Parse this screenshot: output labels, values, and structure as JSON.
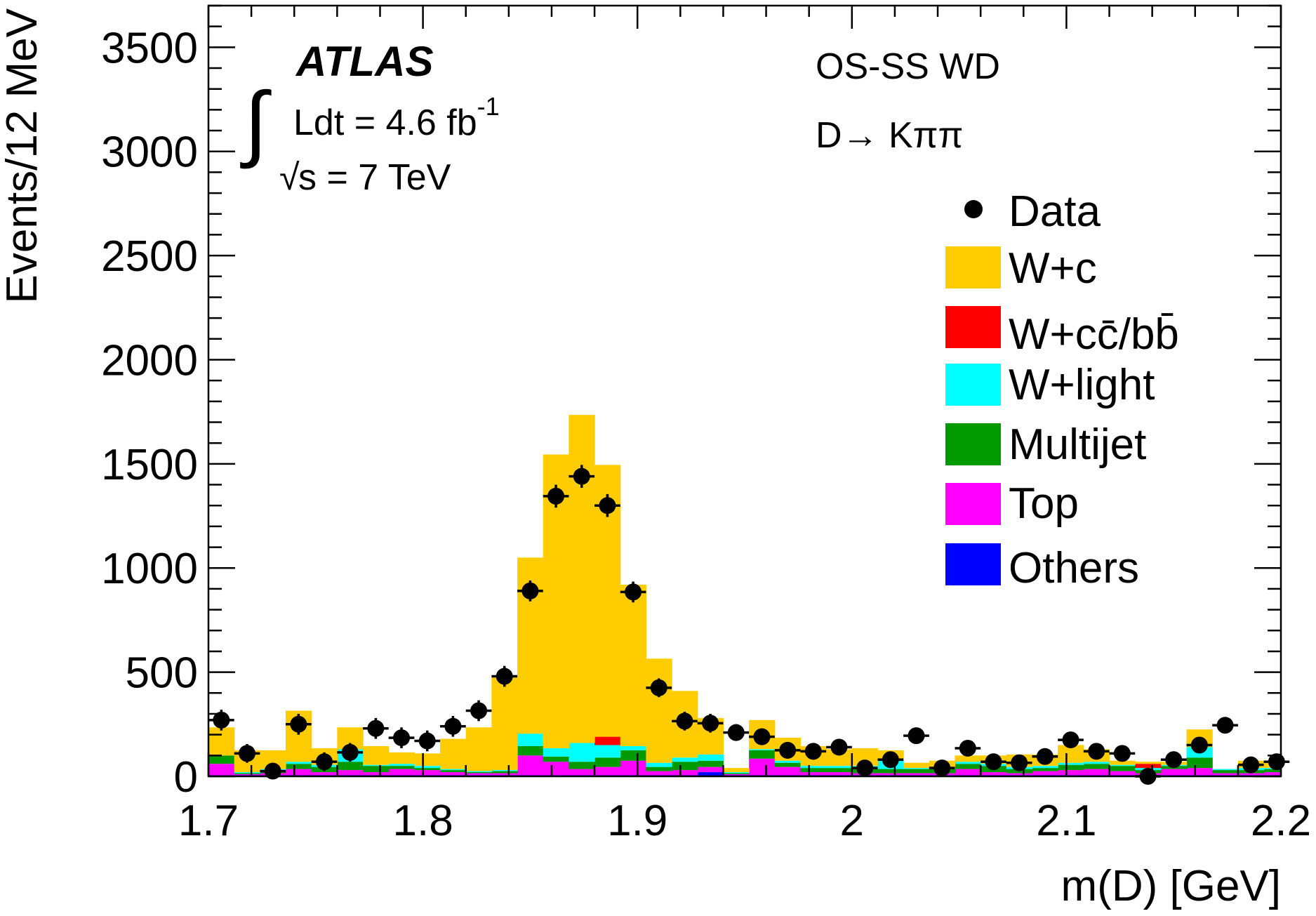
{
  "chart_data": {
    "type": "bar",
    "subtype": "stacked-histogram-with-data-points",
    "xlabel": "m(D) [GeV]",
    "ylabel": "Events/12 MeV",
    "xlim": [
      1.7,
      2.2
    ],
    "ylim": [
      0,
      3700
    ],
    "xticks": [
      1.7,
      1.8,
      1.9,
      2.0,
      2.1,
      2.2
    ],
    "xtick_labels": [
      "1.7",
      "1.8",
      "1.9",
      "2",
      "2.1",
      "2.2"
    ],
    "yticks": [
      0,
      500,
      1000,
      1500,
      2000,
      2500,
      3000,
      3500
    ],
    "ytick_labels": [
      "0",
      "500",
      "1000",
      "1500",
      "2000",
      "2500",
      "3000",
      "3500"
    ],
    "bin_edges": [
      1.7,
      1.712,
      1.724,
      1.736,
      1.748,
      1.76,
      1.772,
      1.784,
      1.796,
      1.808,
      1.82,
      1.832,
      1.844,
      1.856,
      1.868,
      1.88,
      1.892,
      1.904,
      1.916,
      1.928,
      1.94,
      1.952,
      1.964,
      1.976,
      1.988,
      2.0,
      2.012,
      2.024,
      2.036,
      2.048,
      2.06,
      2.072,
      2.084,
      2.096,
      2.108,
      2.12,
      2.132,
      2.144,
      2.156,
      2.168,
      2.18,
      2.192,
      2.2
    ],
    "series": [
      {
        "name": "Others",
        "color": "#0000ff",
        "values": [
          5,
          5,
          5,
          5,
          5,
          5,
          5,
          5,
          5,
          5,
          5,
          5,
          5,
          5,
          5,
          5,
          5,
          5,
          5,
          20,
          5,
          5,
          5,
          5,
          5,
          5,
          5,
          5,
          5,
          5,
          5,
          5,
          5,
          5,
          5,
          5,
          5,
          5,
          5,
          5,
          5,
          5
        ]
      },
      {
        "name": "Top",
        "color": "#ff00ff",
        "values": [
          55,
          5,
          10,
          30,
          15,
          25,
          15,
          30,
          25,
          15,
          10,
          10,
          95,
          65,
          30,
          40,
          70,
          20,
          25,
          25,
          5,
          80,
          40,
          15,
          15,
          10,
          10,
          10,
          10,
          30,
          15,
          10,
          20,
          25,
          30,
          20,
          10,
          30,
          35,
          10,
          10,
          15
        ]
      },
      {
        "name": "Multijet",
        "color": "#009900",
        "values": [
          40,
          5,
          15,
          25,
          25,
          40,
          30,
          15,
          10,
          10,
          5,
          10,
          45,
          25,
          35,
          45,
          50,
          20,
          40,
          30,
          5,
          40,
          20,
          20,
          20,
          25,
          20,
          20,
          20,
          25,
          30,
          20,
          15,
          25,
          25,
          25,
          15,
          15,
          50,
          15,
          15,
          15
        ]
      },
      {
        "name": "W+light",
        "color": "#00ffff",
        "values": [
          0,
          5,
          5,
          10,
          10,
          60,
          5,
          10,
          10,
          5,
          5,
          5,
          60,
          40,
          90,
          60,
          20,
          20,
          20,
          30,
          5,
          5,
          10,
          10,
          10,
          10,
          45,
          5,
          5,
          10,
          10,
          10,
          10,
          10,
          10,
          5,
          10,
          5,
          50,
          5,
          10,
          5
        ]
      },
      {
        "name": "W+cc̄/bb̄",
        "color": "#ff0000",
        "values": [
          0,
          0,
          0,
          0,
          0,
          0,
          0,
          0,
          0,
          0,
          0,
          0,
          0,
          0,
          0,
          40,
          0,
          0,
          0,
          0,
          0,
          0,
          0,
          0,
          0,
          0,
          0,
          0,
          0,
          0,
          0,
          0,
          0,
          0,
          0,
          0,
          20,
          0,
          0,
          0,
          0,
          0
        ]
      },
      {
        "name": "W+c",
        "color": "#ffcc00",
        "values": [
          135,
          105,
          90,
          245,
          80,
          105,
          90,
          55,
          60,
          145,
          210,
          455,
          845,
          1410,
          1575,
          1305,
          775,
          500,
          320,
          175,
          20,
          140,
          110,
          95,
          80,
          85,
          45,
          25,
          35,
          30,
          40,
          60,
          55,
          85,
          60,
          20,
          10,
          15,
          85,
          0,
          35,
          25
        ]
      }
    ],
    "data_points": {
      "name": "Data",
      "x": [
        1.706,
        1.718,
        1.73,
        1.742,
        1.754,
        1.766,
        1.778,
        1.79,
        1.802,
        1.814,
        1.826,
        1.838,
        1.85,
        1.862,
        1.874,
        1.886,
        1.898,
        1.91,
        1.922,
        1.934,
        1.946,
        1.958,
        1.97,
        1.982,
        1.994,
        2.006,
        2.018,
        2.03,
        2.042,
        2.054,
        2.066,
        2.078,
        2.09,
        2.102,
        2.114,
        2.126,
        2.138,
        2.15,
        2.162,
        2.174,
        2.186,
        2.198
      ],
      "y": [
        270,
        110,
        25,
        250,
        70,
        115,
        230,
        185,
        170,
        240,
        315,
        480,
        890,
        1345,
        1440,
        1300,
        885,
        425,
        265,
        255,
        210,
        190,
        125,
        120,
        140,
        40,
        80,
        195,
        40,
        135,
        70,
        65,
        95,
        175,
        120,
        110,
        0,
        80,
        150,
        245,
        55,
        70
      ],
      "yerr": [
        50,
        45,
        40,
        50,
        45,
        45,
        50,
        50,
        50,
        50,
        50,
        50,
        50,
        55,
        55,
        55,
        50,
        45,
        45,
        45,
        40,
        40,
        40,
        40,
        40,
        35,
        35,
        35,
        35,
        35,
        35,
        35,
        35,
        35,
        35,
        35,
        35,
        35,
        35,
        35,
        35,
        35
      ]
    },
    "legend": {
      "position": "right",
      "entries": [
        "Data",
        "W+c",
        "W+cc̄/bb̄",
        "W+light",
        "Multijet",
        "Top",
        "Others"
      ]
    },
    "annotations": {
      "experiment": "ATLAS",
      "lumi_integral": "∫",
      "lumi_text": "Ldt = 4.6 fb",
      "lumi_exp": "-1",
      "energy_sqrt": "√",
      "energy_text": "s = 7 TeV",
      "selection": "OS-SS WD",
      "channel": "D→ Kππ"
    }
  }
}
